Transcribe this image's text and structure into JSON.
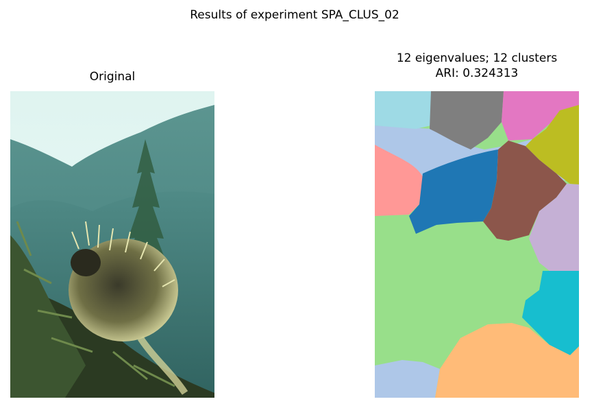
{
  "figure": {
    "suptitle": "Results of experiment SPA_CLUS_02"
  },
  "left_panel": {
    "title": "Original",
    "image_subject": "porcupine on a pine branch with misty mountains behind"
  },
  "right_panel": {
    "title_line1": "12 eigenvalues; 12 clusters",
    "title_line2": "ARI: 0.324313",
    "cluster_count": 12,
    "cluster_colors": [
      "#9edae5",
      "#7f7f7f",
      "#e377c2",
      "#aec7e8",
      "#bcbd22",
      "#ff9896",
      "#1f77b4",
      "#8c564b",
      "#98df8a",
      "#c5b0d5",
      "#17becf",
      "#ffbb78"
    ]
  }
}
